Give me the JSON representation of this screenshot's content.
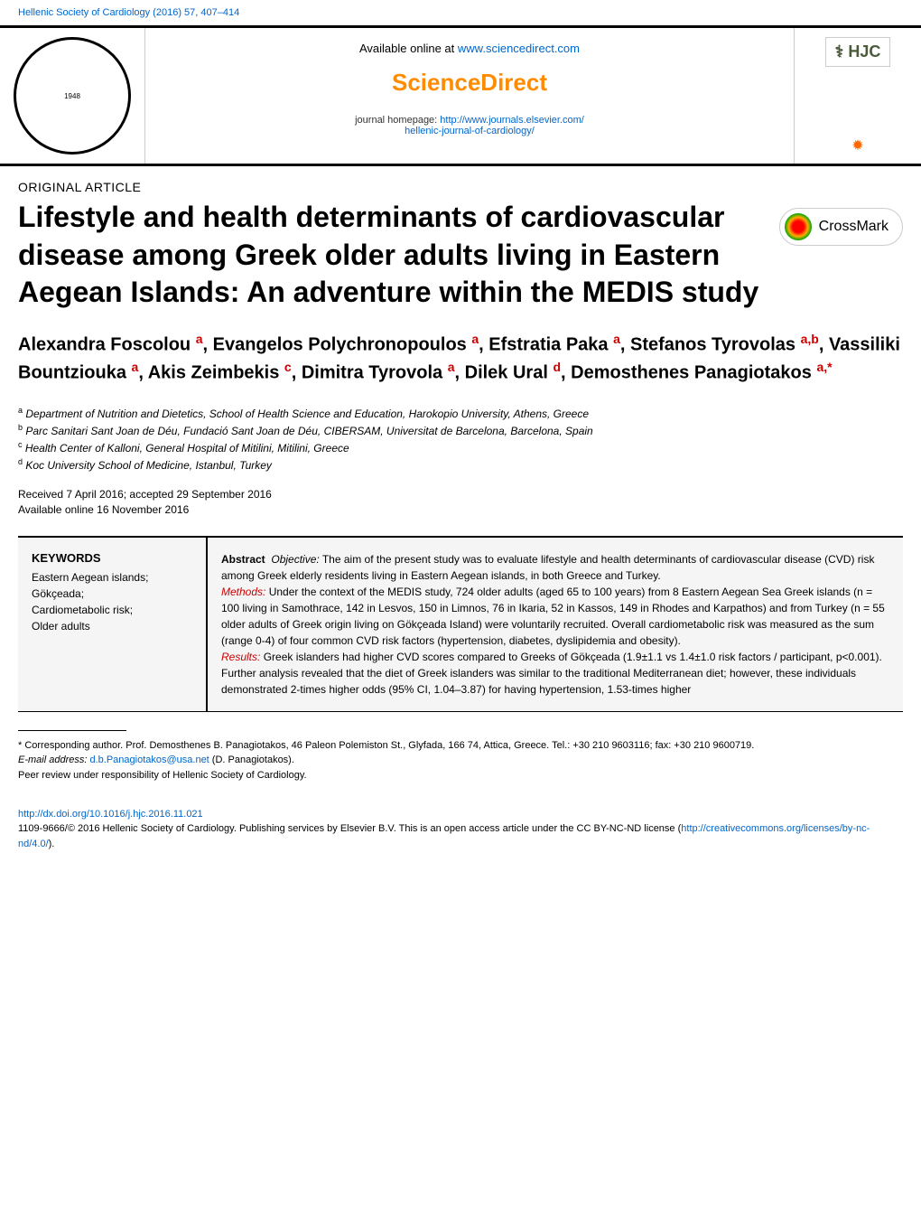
{
  "header": {
    "journal_ref": "Hellenic Society of Cardiology (2016) 57, 407–414",
    "page_num": ""
  },
  "top": {
    "avail_prefix": "Available online at ",
    "avail_link": "www.sciencedirect.com",
    "sd_logo": "ScienceDirect",
    "jh_prefix": "journal homepage: ",
    "jh_link1": "http://www.journals.elsevier.com/",
    "jh_link2": "hellenic-journal-of-cardiology/",
    "hjc": "HJC",
    "society_logo_text": "1948"
  },
  "article": {
    "type": "ORIGINAL ARTICLE",
    "title": "Lifestyle and health determinants of cardiovascular disease among Greek older adults living in Eastern Aegean Islands: An adventure within the MEDIS study",
    "crossmark": "CrossMark"
  },
  "authors": {
    "a1": "Alexandra Foscolou ",
    "a2": ", Evangelos Polychronopoulos ",
    "a3": ", Efstratia Paka ",
    "a4": ", Stefanos Tyrovolas ",
    "a5": ", Vassiliki Bountziouka ",
    "a6": ", Akis Zeimbekis ",
    "a7": ", Dimitra Tyrovola ",
    "a8": ", Dilek Ural ",
    "a9": ", Demosthenes Panagiotakos ",
    "s1": "a",
    "s2": "a",
    "s3": "a",
    "s4": "a,b",
    "s5": "a",
    "s6": "c",
    "s7": "a",
    "s8": "d",
    "s9": "a,*"
  },
  "affiliations": {
    "a": "Department of Nutrition and Dietetics, School of Health Science and Education, Harokopio University, Athens, Greece",
    "b": "Parc Sanitari Sant Joan de Déu, Fundació Sant Joan de Déu, CIBERSAM, Universitat de Barcelona, Barcelona, Spain",
    "c": "Health Center of Kalloni, General Hospital of Mitilini, Mitilini, Greece",
    "d": "Koc University School of Medicine, Istanbul, Turkey",
    "sa": "a",
    "sb": "b",
    "sc": "c",
    "sd": "d"
  },
  "dates": {
    "received": "Received 7 April 2016; accepted 29 September 2016",
    "online": "Available online 16 November 2016"
  },
  "keywords": {
    "heading": "KEYWORDS",
    "k1": "Eastern Aegean islands;",
    "k2": "Gökçeada;",
    "k3": "Cardiometabolic risk;",
    "k4": "Older adults"
  },
  "abstract": {
    "label": "Abstract",
    "obj_label": "Objective:",
    "obj_text": " The aim of the present study was to evaluate lifestyle and health determinants of cardiovascular disease (CVD) risk among Greek elderly residents living in Eastern Aegean islands, in both Greece and Turkey.",
    "meth_label": "Methods:",
    "meth_text": " Under the context of the MEDIS study, 724 older adults (aged 65 to 100 years) from 8 Eastern Aegean Sea Greek islands (n = 100 living in Samothrace, 142 in Lesvos, 150 in Limnos, 76 in Ikaria, 52 in Kassos, 149 in Rhodes and Karpathos) and from Turkey (n = 55 older adults of Greek origin living on Gökçeada Island) were voluntarily recruited. Overall cardiometabolic risk was measured as the sum (range 0-4) of four common CVD risk factors (hypertension, diabetes, dyslipidemia and obesity).",
    "res_label": "Results:",
    "res_text": " Greek islanders had higher CVD scores compared to Greeks of Gökçeada (1.9±1.1 vs 1.4±1.0 risk factors / participant, p<0.001). Further analysis revealed that the diet of Greek islanders was similar to the traditional Mediterranean diet; however, these individuals demonstrated 2-times higher odds (95% CI, 1.04–3.87) for having hypertension, 1.53-times higher"
  },
  "footer": {
    "corr": "* Corresponding author. Prof. Demosthenes B. Panagiotakos, 46 Paleon Polemiston St., Glyfada, 166 74, Attica, Greece. Tel.: +30 210 9603116; fax: +30 210 9600719.",
    "email_label": "E-mail address: ",
    "email": "d.b.Panagiotakos@usa.net",
    "email_suffix": " (D. Panagiotakos).",
    "peer": "Peer review under responsibility of Hellenic Society of Cardiology.",
    "doi": "http://dx.doi.org/10.1016/j.hjc.2016.11.021",
    "copyright_a": "1109-9666/© 2016 Hellenic Society of Cardiology. Publishing services by Elsevier B.V. This is an open access article under the CC BY-NC-ND license (",
    "license": "http://creativecommons.org/licenses/by-nc-nd/4.0/",
    "copyright_b": ")."
  },
  "styling": {
    "accent_color": "#cc0000",
    "link_color": "#0066cc",
    "sd_color": "#ff8c00",
    "background": "#ffffff",
    "abstract_bg": "#f5f5f5",
    "title_fontsize": 32,
    "author_fontsize": 20,
    "body_fontsize": 12,
    "small_fontsize": 11
  }
}
